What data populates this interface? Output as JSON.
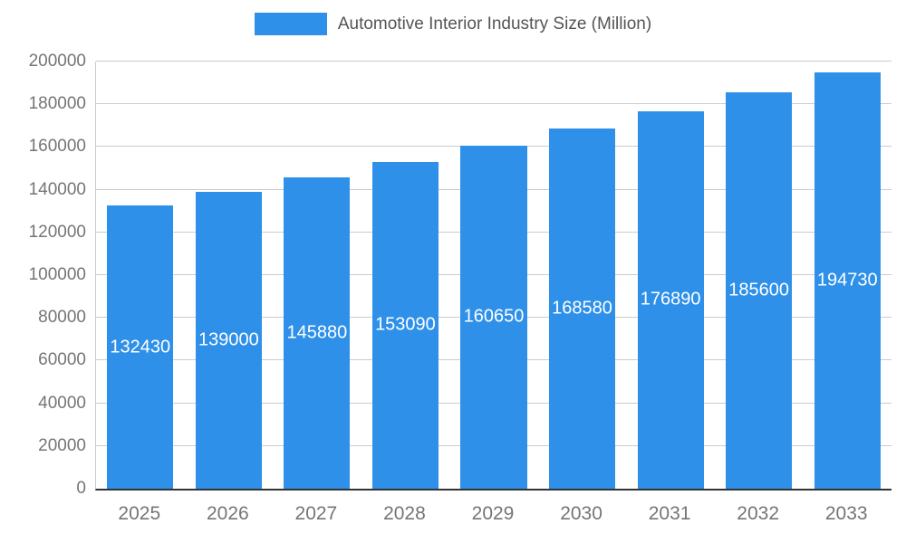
{
  "chart_data": {
    "type": "bar",
    "title": "Automotive Interior Industry Size (Million)",
    "categories": [
      "2025",
      "2026",
      "2027",
      "2028",
      "2029",
      "2030",
      "2031",
      "2032",
      "2033"
    ],
    "values": [
      132430,
      139000,
      145880,
      153090,
      160650,
      168580,
      176890,
      185600,
      194730
    ],
    "series": [
      {
        "name": "Automotive Interior Industry Size (Million)",
        "values": [
          132430,
          139000,
          145880,
          153090,
          160650,
          168580,
          176890,
          185600,
          194730
        ]
      }
    ],
    "xlabel": "",
    "ylabel": "",
    "ylim": [
      0,
      200000
    ],
    "y_ticks": [
      0,
      20000,
      40000,
      60000,
      80000,
      100000,
      120000,
      140000,
      160000,
      180000,
      200000
    ],
    "grid": true,
    "legend_position": "top",
    "bar_labels_visible": true,
    "colors": {
      "bar": "#2E90E9",
      "grid": "#cccccc",
      "axis_text": "#757575",
      "bar_label_text": "#ffffff",
      "legend_text": "#555555",
      "axis_line": "#333333"
    }
  }
}
